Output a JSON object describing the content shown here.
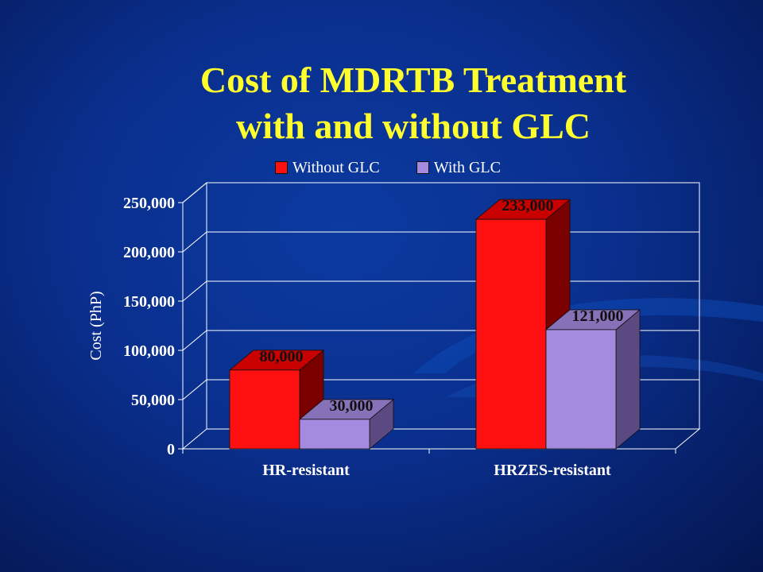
{
  "slide": {
    "title_line1": "Cost of MDRTB Treatment",
    "title_line2": "with and without GLC"
  },
  "colors": {
    "without_front": "#ff1010",
    "without_top": "#c80000",
    "without_side": "#7a0000",
    "with_front": "#a58be0",
    "with_top": "#8771b8",
    "with_side": "#5b4a82",
    "text": "#ffffff",
    "title": "#ffff2e",
    "grid": "#ffffff",
    "value_label": "#101010"
  },
  "chart_data": {
    "type": "bar",
    "title": "Cost of MDRTB Treatment with and without GLC",
    "xlabel": "",
    "ylabel": "Cost (PhP)",
    "ylim": [
      0,
      250000
    ],
    "yticks": [
      0,
      50000,
      100000,
      150000,
      200000,
      250000
    ],
    "ytick_labels": [
      "0",
      "50,000",
      "100,000",
      "150,000",
      "200,000",
      "250,000"
    ],
    "categories": [
      "HR-resistant",
      "HRZES-resistant"
    ],
    "series": [
      {
        "name": "Without GLC",
        "values": [
          80000,
          233000
        ],
        "labels": [
          "80,000",
          "233,000"
        ]
      },
      {
        "name": "With GLC",
        "values": [
          30000,
          121000
        ],
        "labels": [
          "30,000",
          "121,000"
        ]
      }
    ],
    "legend_position": "top",
    "grid": true,
    "style": "3d-clustered-bar"
  }
}
